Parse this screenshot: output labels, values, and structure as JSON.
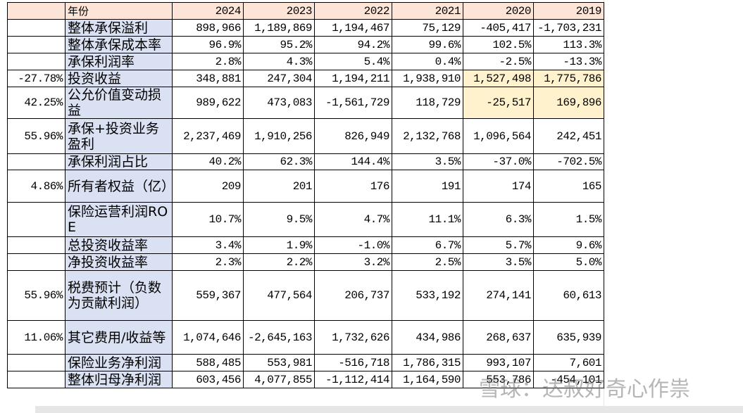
{
  "table": {
    "header": [
      "年份",
      "2024",
      "2023",
      "2022",
      "2021",
      "2020",
      "2019"
    ],
    "rows": [
      {
        "label": "整体承保溢利",
        "values": [
          "898,966",
          "1,189,869",
          "1,194,467",
          "75,129",
          "-405,417",
          "-1,703,231"
        ]
      },
      {
        "label": "整体承保成本率",
        "values": [
          "96.9%",
          "95.2%",
          "94.2%",
          "99.6%",
          "102.5%",
          "113.3%"
        ]
      },
      {
        "label": "承保利润率",
        "values": [
          "2.8%",
          "4.3%",
          "5.4%",
          "0.4%",
          "-2.5%",
          "-13.3%"
        ]
      },
      {
        "note": "-27.78%",
        "label": "投资收益",
        "values": [
          "348,881",
          "247,304",
          "1,194,211",
          "1,938,910",
          "1,527,498",
          "1,775,786"
        ]
      },
      {
        "note": "42.25%",
        "label": "公允价值变动损益",
        "values": [
          "989,622",
          "473,083",
          "-1,561,729",
          "118,729",
          "-25,517",
          "169,896"
        ]
      },
      {
        "note": "55.96%",
        "label": "承保+投资业务盈利",
        "values": [
          "2,237,469",
          "1,910,256",
          "826,949",
          "2,132,768",
          "1,096,564",
          "242,451"
        ]
      },
      {
        "label": "承保利润占比",
        "values": [
          "40.2%",
          "62.3%",
          "144.4%",
          "3.5%",
          "-37.0%",
          "-702.5%"
        ]
      },
      {
        "note": "4.86%",
        "label": "所有者权益（亿）",
        "values": [
          "209",
          "201",
          "176",
          "191",
          "174",
          "165"
        ]
      },
      {
        "label": "保险运营利润ROE",
        "values": [
          "10.7%",
          "9.5%",
          "4.7%",
          "11.1%",
          "6.3%",
          "1.5%"
        ]
      },
      {
        "label": "总投资收益率",
        "values": [
          "3.4%",
          "1.9%",
          "-1.0%",
          "6.7%",
          "5.7%",
          "9.6%"
        ]
      },
      {
        "label": "净投资收益率",
        "values": [
          "2.3%",
          "2.2%",
          "3.2%",
          "2.5%",
          "3.5%",
          "5.0%"
        ]
      },
      {
        "note": "55.96%",
        "label": "税费预计（负数为贡献利润）",
        "values": [
          "559,367",
          "477,564",
          "206,737",
          "533,192",
          "274,141",
          "60,613"
        ]
      },
      {
        "note": "11.06%",
        "label": "其它费用/收益等",
        "values": [
          "1,074,646",
          "-2,645,163",
          "1,732,626",
          "434,986",
          "268,637",
          "635,939"
        ]
      },
      {
        "label": "保险业务净利润",
        "values": [
          "588,485",
          "553,981",
          "-516,718",
          "1,786,315",
          "993,107",
          "7,601"
        ]
      },
      {
        "label": "整体归母净利润",
        "values": [
          "603,456",
          "4,077,855",
          "-1,112,414",
          "1,164,590",
          "553,786",
          "-454,101"
        ]
      }
    ]
  },
  "watermark": "雪球：达叔好奇心作祟"
}
